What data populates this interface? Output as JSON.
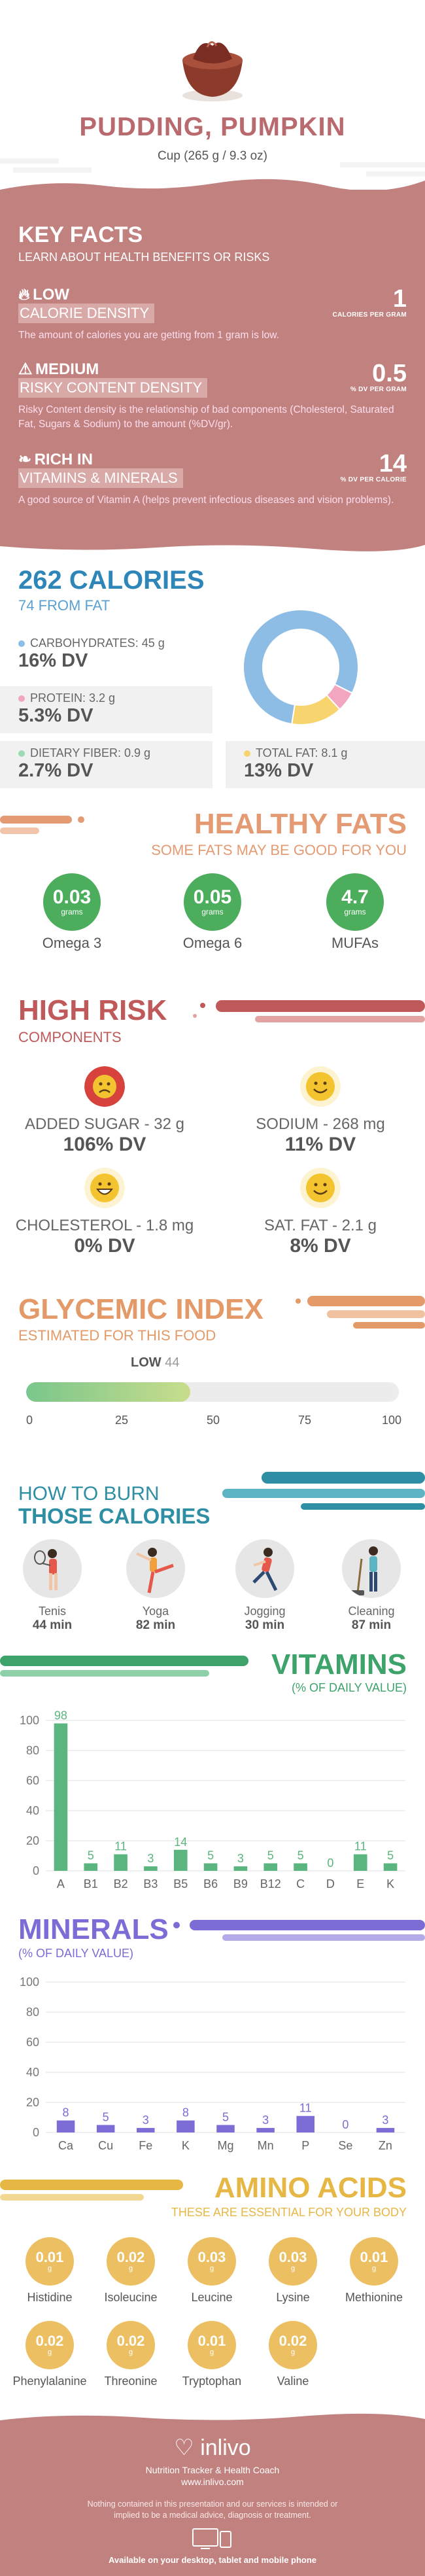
{
  "header": {
    "title": "PUDDING, PUMPKIN",
    "serving": "Cup (265 g / 9.3 oz)"
  },
  "key_facts": {
    "title": "KEY FACTS",
    "subtitle": "LEARN ABOUT HEALTH BENEFITS OR RISKS",
    "items": [
      {
        "icon": "flame-icon",
        "level": "LOW",
        "label": "CALORIE DENSITY",
        "value": "1",
        "unit": "CALORIES PER GRAM",
        "description": "The amount of calories you are getting from 1 gram is low."
      },
      {
        "icon": "warning-icon",
        "level": "MEDIUM",
        "label": "RISKY CONTENT DENSITY",
        "value": "0.5",
        "unit": "% DV PER GRAM",
        "description": "Risky Content density is the relationship of bad components (Cholesterol, Saturated Fat, Sugars & Sodium) to the amount (%DV/gr)."
      },
      {
        "icon": "leaf-icon",
        "level": "RICH IN",
        "label": "VITAMINS & MINERALS",
        "value": "14",
        "unit": "% DV PER CALORIE",
        "description": "A good source of Vitamin A (helps prevent infectious diseases and vision problems)."
      }
    ]
  },
  "calories": {
    "title": "262 CALORIES",
    "subtitle": "74 FROM FAT",
    "macros": [
      {
        "name": "CARBOHYDRATES: 45 g",
        "dv": "16% DV",
        "color": "#8dbde4"
      },
      {
        "name": "PROTEIN: 3.2 g",
        "dv": "5.3% DV",
        "color": "#f3a6c0"
      },
      {
        "name": "DIETARY FIBER: 0.9 g",
        "dv": "2.7% DV",
        "color": "#9fd8b4"
      },
      {
        "name": "TOTAL FAT: 8.1 g",
        "dv": "13% DV",
        "color": "#f7d46e"
      }
    ],
    "donut": [
      {
        "name": "carbohydrates",
        "value": 45,
        "color": "#8dbde4"
      },
      {
        "name": "protein",
        "value": 3.2,
        "color": "#f3a6c0"
      },
      {
        "name": "fat",
        "value": 8.1,
        "color": "#f7d46e"
      }
    ]
  },
  "healthy_fats": {
    "title": "HEALTHY FATS",
    "subtitle": "SOME FATS MAY BE GOOD FOR YOU",
    "items": [
      {
        "value": "0.03",
        "unit": "grams",
        "name": "Omega 3"
      },
      {
        "value": "0.05",
        "unit": "grams",
        "name": "Omega 6"
      },
      {
        "value": "4.7",
        "unit": "grams",
        "name": "MUFAs"
      }
    ]
  },
  "high_risk": {
    "title": "HIGH RISK",
    "subtitle": "COMPONENTS",
    "items": [
      {
        "name": "ADDED SUGAR - 32 g",
        "dv": "106% DV",
        "face": "sad-face-icon",
        "color": "#d7423c"
      },
      {
        "name": "SODIUM - 268 mg",
        "dv": "11% DV",
        "face": "smiley-icon",
        "color": "#f4c430"
      },
      {
        "name": "CHOLESTEROL - 1.8 mg",
        "dv": "0% DV",
        "face": "grin-icon",
        "color": "#f4c430"
      },
      {
        "name": "SAT. FAT - 2.1 g",
        "dv": "8% DV",
        "face": "smiley-icon",
        "color": "#f4c430"
      }
    ]
  },
  "glycemic": {
    "title": "GLYCEMIC INDEX",
    "subtitle": "ESTIMATED FOR THIS FOOD",
    "level": "LOW",
    "value": 44,
    "value_text": "44",
    "ticks": [
      "0",
      "25",
      "50",
      "75",
      "100"
    ]
  },
  "burn": {
    "title_top": "HOW TO BURN",
    "title_bottom": "THOSE CALORIES",
    "activities": [
      {
        "name": "Tenis",
        "minutes": "44 min",
        "icon": "tennis-icon"
      },
      {
        "name": "Yoga",
        "minutes": "82 min",
        "icon": "yoga-icon"
      },
      {
        "name": "Jogging",
        "minutes": "30 min",
        "icon": "jogging-icon"
      },
      {
        "name": "Cleaning",
        "minutes": "87 min",
        "icon": "cleaning-icon"
      }
    ]
  },
  "vitamins": {
    "title": "VITAMINS",
    "subtitle": "(% OF DAILY VALUE)",
    "chart_data": {
      "type": "bar",
      "categories": [
        "A",
        "B1",
        "B2",
        "B3",
        "B5",
        "B6",
        "B9",
        "B12",
        "C",
        "D",
        "E",
        "K"
      ],
      "values": [
        98,
        5,
        11,
        3,
        14,
        5,
        3,
        5,
        5,
        0,
        11,
        5
      ],
      "labels": [
        "98",
        "5",
        "11",
        "3",
        "14",
        "5",
        "3",
        "5",
        "5",
        "0",
        "11",
        "5"
      ],
      "ylim": [
        0,
        100
      ],
      "yticks": [
        0,
        20,
        40,
        60,
        80,
        100
      ],
      "color": "#5bb57e",
      "label_color": "#5bb57e",
      "grid": true
    }
  },
  "minerals": {
    "title": "MINERALS",
    "subtitle": "(% OF DAILY VALUE)",
    "chart_data": {
      "type": "bar",
      "categories": [
        "Ca",
        "Cu",
        "Fe",
        "K",
        "Mg",
        "Mn",
        "P",
        "Se",
        "Zn"
      ],
      "values": [
        8,
        5,
        3,
        8,
        5,
        3,
        11,
        0,
        3
      ],
      "labels": [
        "8",
        "5",
        "3",
        "8",
        "5",
        "3",
        "11",
        "0",
        "3"
      ],
      "ylim": [
        0,
        100
      ],
      "yticks": [
        0,
        20,
        40,
        60,
        80,
        100
      ],
      "color": "#7b6cd6",
      "label_color": "#7b6cd6",
      "grid": true
    }
  },
  "amino": {
    "title": "AMINO ACIDS",
    "subtitle": "THESE ARE ESSENTIAL FOR YOUR BODY",
    "items": [
      {
        "value": "0.01",
        "unit": "g",
        "name": "Histidine"
      },
      {
        "value": "0.02",
        "unit": "g",
        "name": "Isoleucine"
      },
      {
        "value": "0.03",
        "unit": "g",
        "name": "Leucine"
      },
      {
        "value": "0.03",
        "unit": "g",
        "name": "Lysine"
      },
      {
        "value": "0.01",
        "unit": "g",
        "name": "Methionine"
      },
      {
        "value": "0.02",
        "unit": "g",
        "name": "Phenylalanine"
      },
      {
        "value": "0.02",
        "unit": "g",
        "name": "Threonine"
      },
      {
        "value": "0.01",
        "unit": "g",
        "name": "Tryptophan"
      },
      {
        "value": "0.02",
        "unit": "g",
        "name": "Valine"
      }
    ]
  },
  "footer": {
    "brand": "inlivo",
    "tagline": "Nutrition Tracker & Health Coach",
    "url": "www.inlivo.com",
    "disclaimer": "Nothing contained in this presentation and our services is intended or implied to be a medical advice, diagnosis or treatment.",
    "available": "Available on your desktop, tablet and mobile phone"
  },
  "colors": {
    "brand": "#c1817f",
    "calories": "#2e86b8",
    "fats": "#e49a73",
    "risk": "#c0595a",
    "glycemic": "#e39a68",
    "burn": "#2e8ea3",
    "vitamins": "#3da36a",
    "minerals": "#7b6cd6",
    "amino": "#e7b745"
  }
}
